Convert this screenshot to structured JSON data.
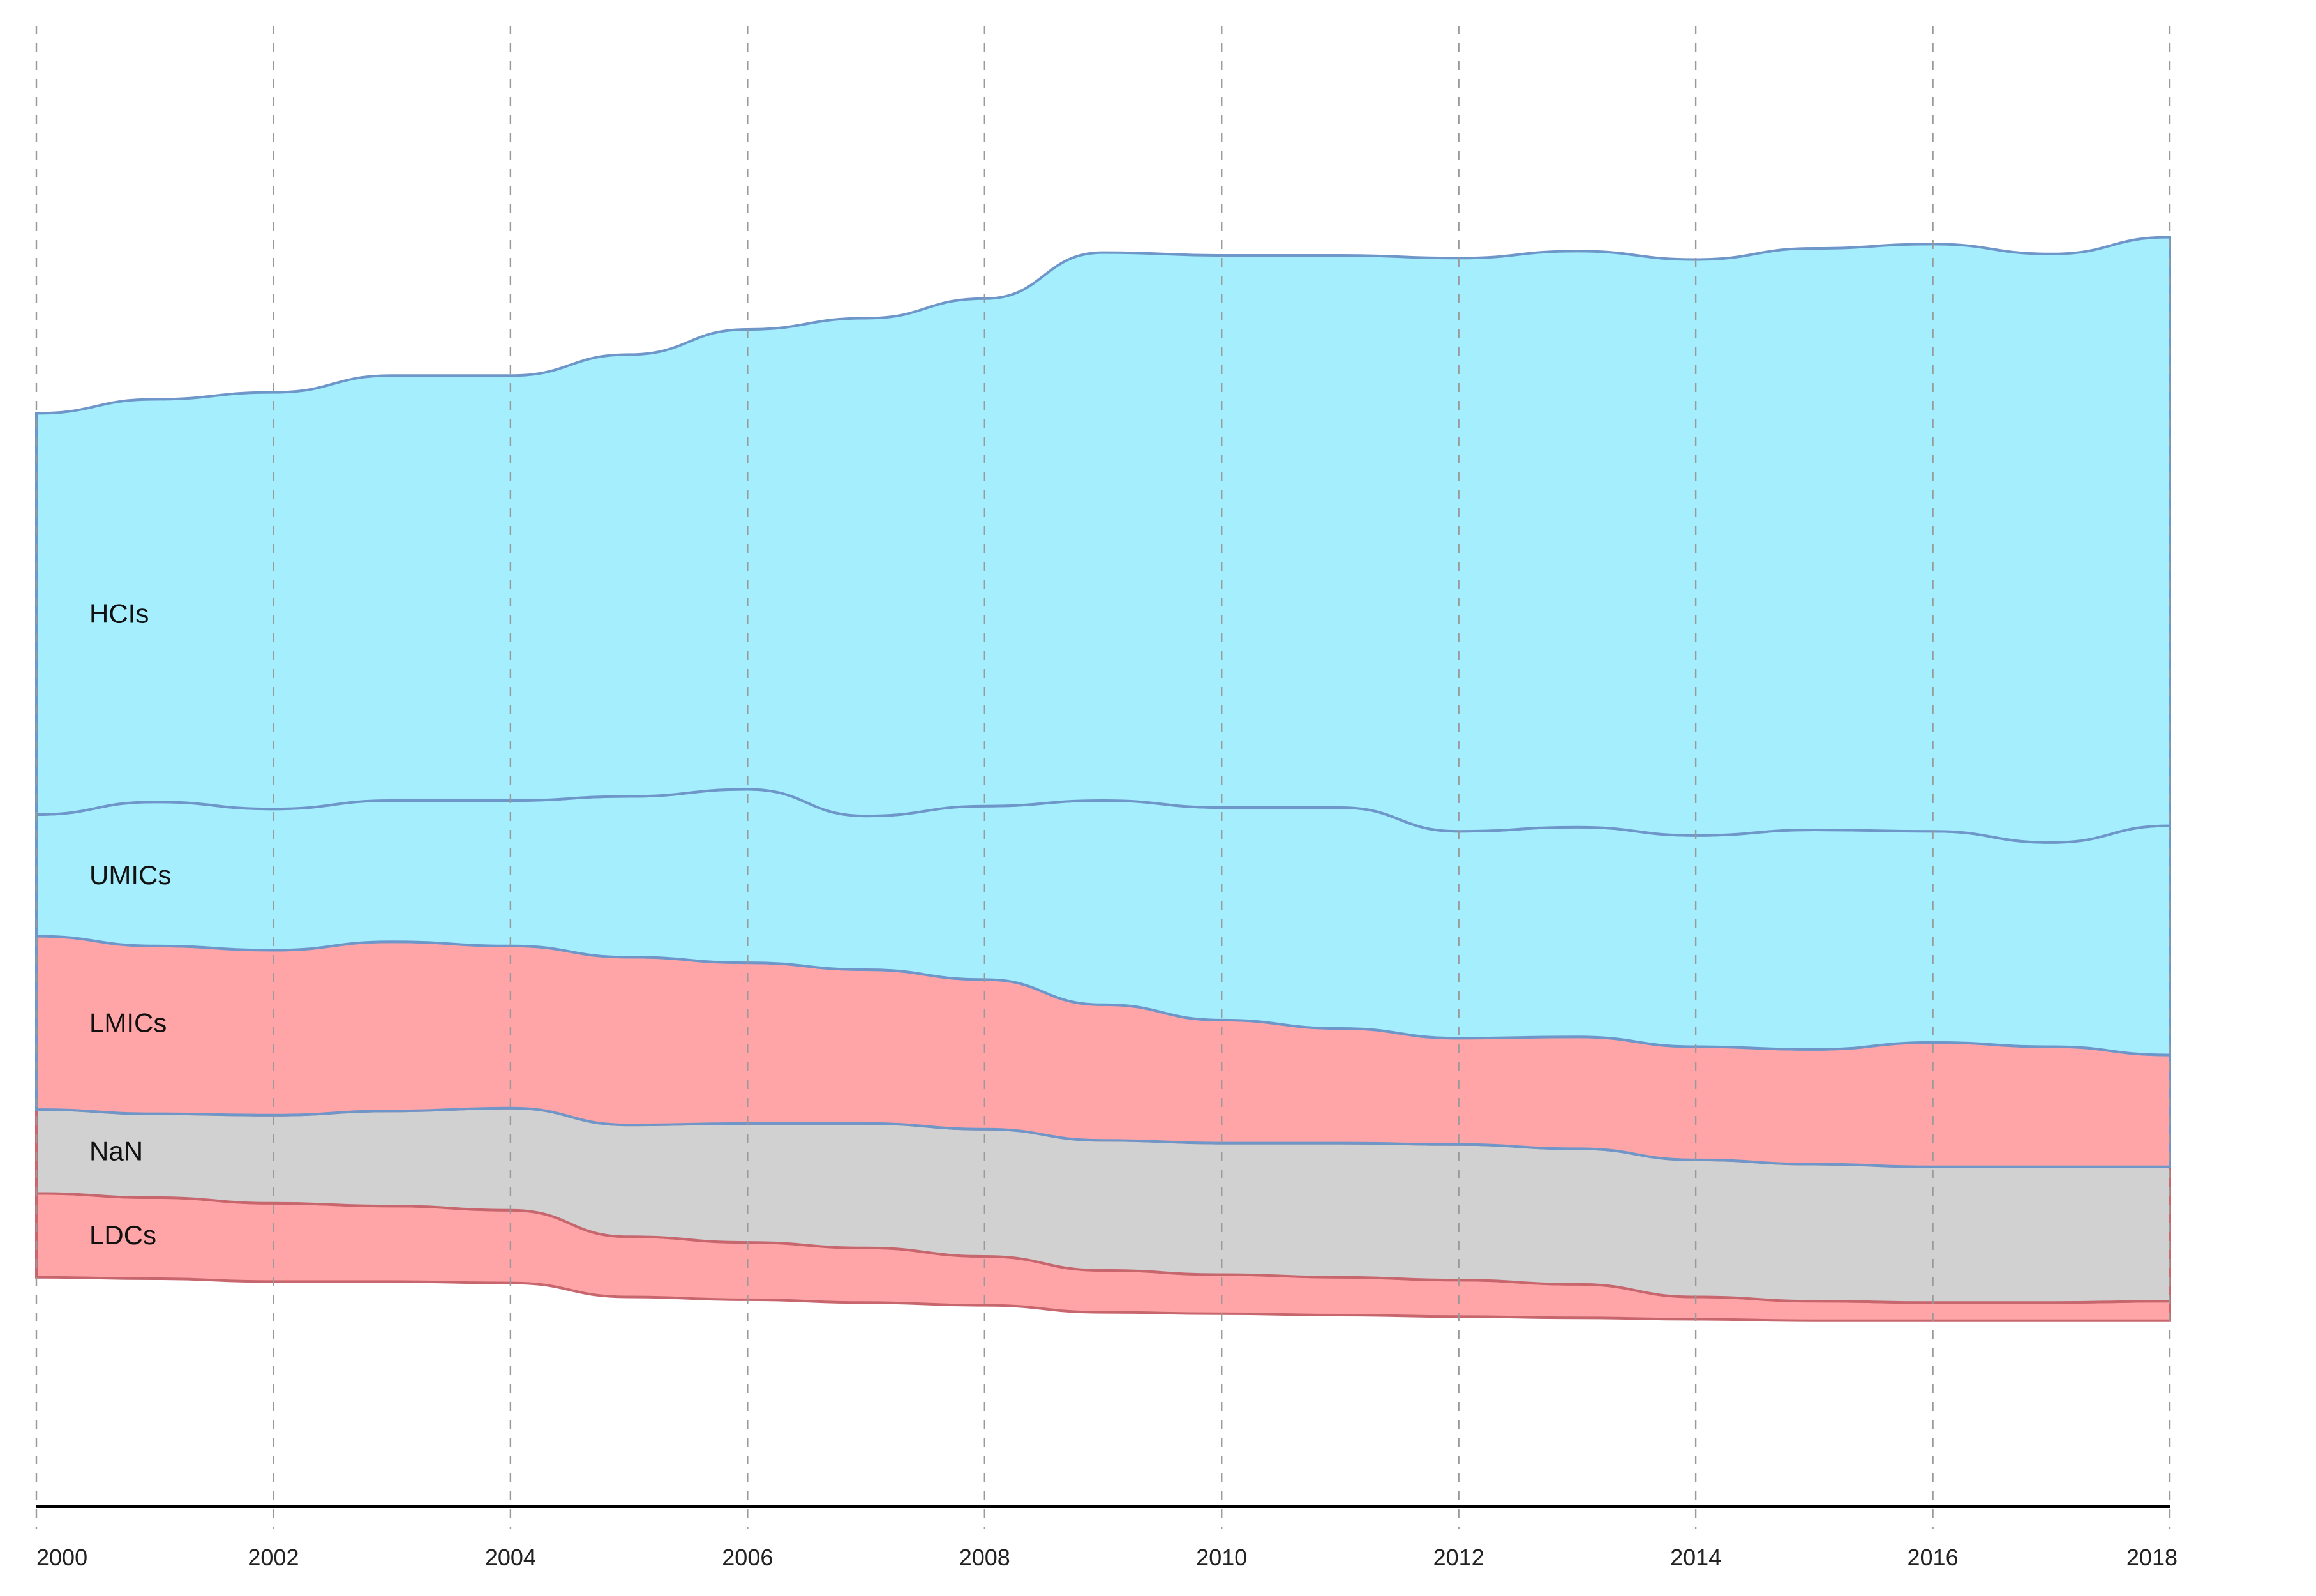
{
  "chart_data": {
    "type": "area",
    "subtype": "stacked-streamgraph",
    "x": [
      2000,
      2001,
      2002,
      2003,
      2004,
      2005,
      2006,
      2007,
      2008,
      2009,
      2010,
      2011,
      2012,
      2013,
      2014,
      2015,
      2016,
      2017,
      2018
    ],
    "xticks": [
      "2000",
      "2002",
      "2004",
      "2006",
      "2008",
      "2010",
      "2012",
      "2014",
      "2016",
      "2018"
    ],
    "xtick_values": [
      2000,
      2002,
      2004,
      2006,
      2008,
      2010,
      2012,
      2014,
      2016,
      2018
    ],
    "xlim": [
      2000,
      2018
    ],
    "ylim": [
      -0.5,
      0.5
    ],
    "grid": "vertical-dashed",
    "series": [
      {
        "name": "LDCs",
        "fill": "#ffa5a7",
        "stroke": "#c8666e",
        "values": [
          0.06,
          0.058,
          0.056,
          0.054,
          0.052,
          0.043,
          0.041,
          0.039,
          0.035,
          0.03,
          0.028,
          0.027,
          0.026,
          0.024,
          0.016,
          0.014,
          0.013,
          0.013,
          0.014
        ]
      },
      {
        "name": "NaN",
        "fill": "#d1d1d1",
        "stroke": "#c8666e",
        "values": [
          0.06,
          0.06,
          0.063,
          0.068,
          0.073,
          0.08,
          0.085,
          0.089,
          0.091,
          0.093,
          0.094,
          0.096,
          0.097,
          0.097,
          0.098,
          0.098,
          0.097,
          0.097,
          0.096
        ]
      },
      {
        "name": "LMICs",
        "fill": "#ffa5a7",
        "stroke": "#6e96c8",
        "values": [
          0.124,
          0.12,
          0.118,
          0.121,
          0.116,
          0.12,
          0.115,
          0.11,
          0.107,
          0.097,
          0.088,
          0.082,
          0.076,
          0.08,
          0.081,
          0.082,
          0.089,
          0.086,
          0.08
        ]
      },
      {
        "name": "UMICs",
        "fill": "#a4eefe",
        "stroke": "#6e96c8",
        "values": [
          0.087,
          0.103,
          0.101,
          0.101,
          0.104,
          0.115,
          0.124,
          0.11,
          0.124,
          0.146,
          0.152,
          0.158,
          0.148,
          0.15,
          0.151,
          0.157,
          0.151,
          0.146,
          0.164
        ]
      },
      {
        "name": "HCIs",
        "fill": "#a4eefe",
        "stroke": "#6e96c8",
        "values": [
          0.287,
          0.288,
          0.298,
          0.304,
          0.304,
          0.316,
          0.329,
          0.356,
          0.363,
          0.392,
          0.395,
          0.395,
          0.41,
          0.412,
          0.412,
          0.416,
          0.42,
          0.421,
          0.421
        ]
      }
    ],
    "baseline": [
      -0.336,
      -0.337,
      -0.339,
      -0.339,
      -0.34,
      -0.35,
      -0.352,
      -0.354,
      -0.356,
      -0.361,
      -0.362,
      -0.363,
      -0.364,
      -0.365,
      -0.366,
      -0.367,
      -0.367,
      -0.367,
      -0.367
    ],
    "labels": {
      "HCIs": "HCIs",
      "UMICs": "UMICs",
      "LMICs": "LMICs",
      "NaN": "NaN",
      "LDCs": "LDCs"
    }
  }
}
